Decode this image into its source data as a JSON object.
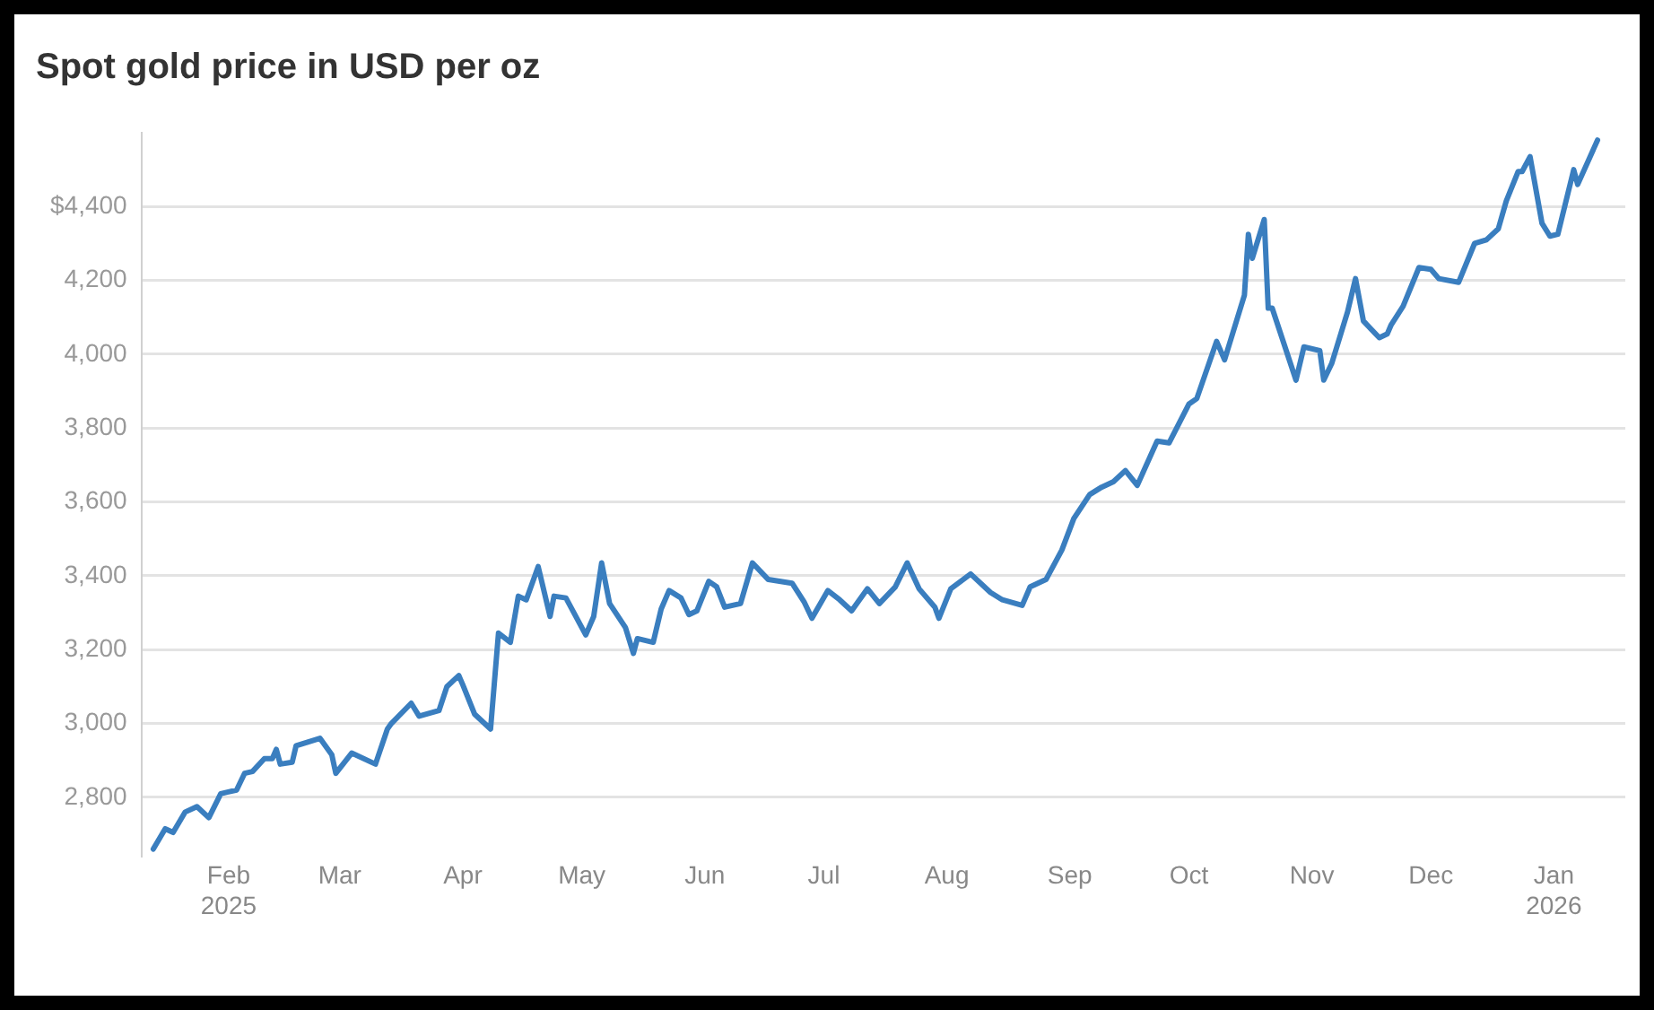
{
  "chart_data": {
    "type": "line",
    "title": "Spot gold price in USD per oz",
    "x": [
      "2025-01-13",
      "2025-01-16",
      "2025-01-18",
      "2025-01-21",
      "2025-01-24",
      "2025-01-27",
      "2025-01-30",
      "2025-02-03",
      "2025-02-05",
      "2025-02-07",
      "2025-02-10",
      "2025-02-12",
      "2025-02-13",
      "2025-02-14",
      "2025-02-17",
      "2025-02-18",
      "2025-02-24",
      "2025-02-27",
      "2025-02-28",
      "2025-03-04",
      "2025-03-10",
      "2025-03-13",
      "2025-03-14",
      "2025-03-19",
      "2025-03-21",
      "2025-03-26",
      "2025-03-28",
      "2025-03-31",
      "2025-04-01",
      "2025-04-04",
      "2025-04-08",
      "2025-04-10",
      "2025-04-13",
      "2025-04-15",
      "2025-04-17",
      "2025-04-20",
      "2025-04-23",
      "2025-04-24",
      "2025-04-27",
      "2025-05-02",
      "2025-05-04",
      "2025-05-06",
      "2025-05-08",
      "2025-05-12",
      "2025-05-14",
      "2025-05-15",
      "2025-05-19",
      "2025-05-21",
      "2025-05-23",
      "2025-05-26",
      "2025-05-28",
      "2025-05-30",
      "2025-06-02",
      "2025-06-04",
      "2025-06-06",
      "2025-06-10",
      "2025-06-13",
      "2025-06-17",
      "2025-06-23",
      "2025-06-26",
      "2025-06-28",
      "2025-07-02",
      "2025-07-05",
      "2025-07-08",
      "2025-07-12",
      "2025-07-15",
      "2025-07-19",
      "2025-07-22",
      "2025-07-25",
      "2025-07-29",
      "2025-07-30",
      "2025-08-02",
      "2025-08-07",
      "2025-08-12",
      "2025-08-15",
      "2025-08-20",
      "2025-08-22",
      "2025-08-26",
      "2025-08-30",
      "2025-09-02",
      "2025-09-06",
      "2025-09-09",
      "2025-09-12",
      "2025-09-15",
      "2025-09-18",
      "2025-09-23",
      "2025-09-26",
      "2025-10-01",
      "2025-10-03",
      "2025-10-08",
      "2025-10-10",
      "2025-10-15",
      "2025-10-16",
      "2025-10-17",
      "2025-10-20",
      "2025-10-21",
      "2025-10-22",
      "2025-10-28",
      "2025-10-30",
      "2025-11-03",
      "2025-11-04",
      "2025-11-06",
      "2025-11-10",
      "2025-11-12",
      "2025-11-14",
      "2025-11-18",
      "2025-11-20",
      "2025-11-21",
      "2025-11-24",
      "2025-11-28",
      "2025-12-01",
      "2025-12-03",
      "2025-12-08",
      "2025-12-12",
      "2025-12-15",
      "2025-12-18",
      "2025-12-20",
      "2025-12-23",
      "2025-12-24",
      "2025-12-26",
      "2025-12-29",
      "2025-12-31",
      "2026-01-02",
      "2026-01-06",
      "2026-01-07",
      "2026-01-12"
    ],
    "series": [
      {
        "color": "#3a7ebf",
        "values": [
          2660,
          2715,
          2705,
          2760,
          2775,
          2745,
          2810,
          2820,
          2865,
          2870,
          2905,
          2905,
          2930,
          2890,
          2895,
          2940,
          2960,
          2915,
          2865,
          2920,
          2890,
          2985,
          3000,
          3055,
          3020,
          3035,
          3100,
          3130,
          3105,
          3025,
          2985,
          3245,
          3220,
          3345,
          3335,
          3425,
          3290,
          3345,
          3340,
          3240,
          3290,
          3435,
          3325,
          3260,
          3190,
          3230,
          3220,
          3310,
          3360,
          3340,
          3295,
          3305,
          3385,
          3370,
          3315,
          3325,
          3435,
          3390,
          3380,
          3330,
          3285,
          3360,
          3335,
          3305,
          3365,
          3325,
          3370,
          3435,
          3365,
          3315,
          3285,
          3365,
          3405,
          3355,
          3335,
          3320,
          3370,
          3390,
          3470,
          3555,
          3620,
          3640,
          3655,
          3685,
          3645,
          3765,
          3760,
          3865,
          3880,
          4035,
          3985,
          4160,
          4325,
          4260,
          4365,
          4125,
          4125,
          3930,
          4020,
          4010,
          3930,
          3975,
          4115,
          4205,
          4090,
          4045,
          4055,
          4080,
          4130,
          4235,
          4230,
          4205,
          4195,
          4300,
          4310,
          4340,
          4415,
          4495,
          4495,
          4535,
          4355,
          4320,
          4325,
          4500,
          4460,
          4580
        ]
      }
    ],
    "xlim": [
      "2025-01-10",
      "2026-01-19"
    ],
    "xticks": [
      {
        "value": "2025-02-01",
        "label": "Feb\n2025"
      },
      {
        "value": "2025-03-01",
        "label": "Mar"
      },
      {
        "value": "2025-04-01",
        "label": "Apr"
      },
      {
        "value": "2025-05-01",
        "label": "May"
      },
      {
        "value": "2025-06-01",
        "label": "Jun"
      },
      {
        "value": "2025-07-01",
        "label": "Jul"
      },
      {
        "value": "2025-08-01",
        "label": "Aug"
      },
      {
        "value": "2025-09-01",
        "label": "Sep"
      },
      {
        "value": "2025-10-01",
        "label": "Oct"
      },
      {
        "value": "2025-11-01",
        "label": "Nov"
      },
      {
        "value": "2025-12-01",
        "label": "Dec"
      },
      {
        "value": "2026-01-01",
        "label": "Jan\n2026"
      }
    ],
    "ylim": [
      2640,
      4600
    ],
    "yticks": [
      {
        "value": 2800,
        "label": "2,800"
      },
      {
        "value": 3000,
        "label": "3,000"
      },
      {
        "value": 3200,
        "label": "3,200"
      },
      {
        "value": 3400,
        "label": "3,400"
      },
      {
        "value": 3600,
        "label": "3,600"
      },
      {
        "value": 3800,
        "label": "3,800"
      },
      {
        "value": 4000,
        "label": "4,000"
      },
      {
        "value": 4200,
        "label": "4,200"
      },
      {
        "value": 4400,
        "label": "$4,400"
      }
    ],
    "grid": "y",
    "legend": false,
    "marker": "none",
    "line_style": "solid"
  }
}
